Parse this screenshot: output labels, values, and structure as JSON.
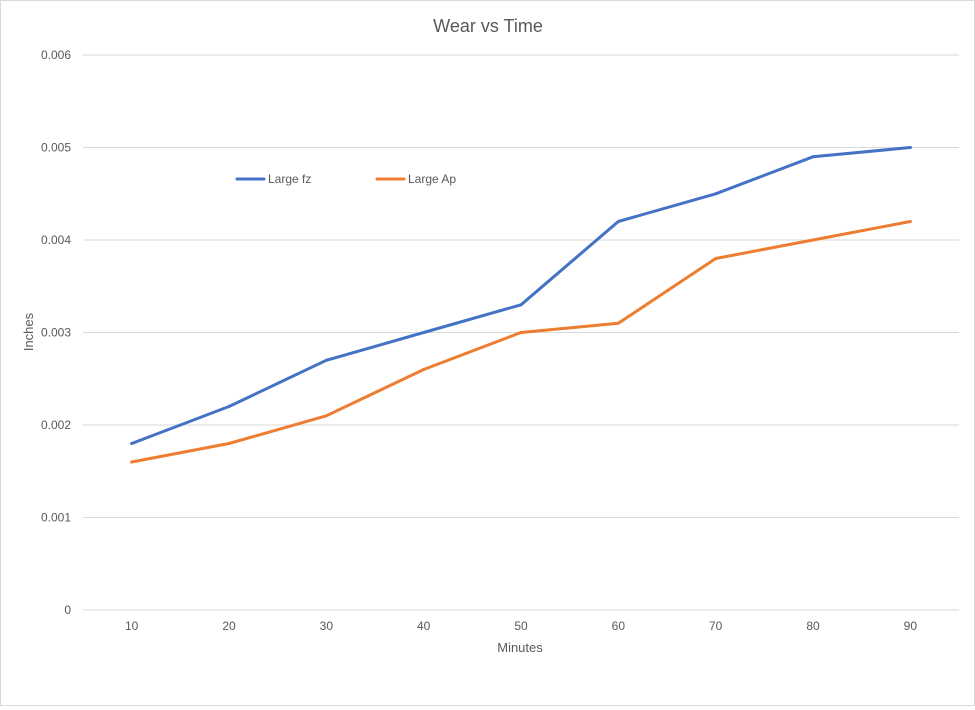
{
  "chart_data": {
    "type": "line",
    "title": "Wear vs Time",
    "xlabel": "Minutes",
    "ylabel": "Inches",
    "categories": [
      "10",
      "20",
      "30",
      "40",
      "50",
      "60",
      "70",
      "80",
      "90"
    ],
    "ylim": [
      0,
      0.006
    ],
    "yticks": [
      "0",
      "0.001",
      "0.002",
      "0.003",
      "0.004",
      "0.005",
      "0.006"
    ],
    "grid": true,
    "legend_position": "top-left",
    "series": [
      {
        "name": "Large fz",
        "color": "#4472c4",
        "values": [
          0.0018,
          0.0022,
          0.0027,
          0.003,
          0.0033,
          0.0042,
          0.0045,
          0.0049,
          0.005
        ]
      },
      {
        "name": "Large Ap",
        "color": "#ed7d31",
        "values": [
          0.0016,
          0.0018,
          0.0021,
          0.0026,
          0.003,
          0.0031,
          0.0038,
          0.004,
          0.0042
        ]
      }
    ]
  }
}
